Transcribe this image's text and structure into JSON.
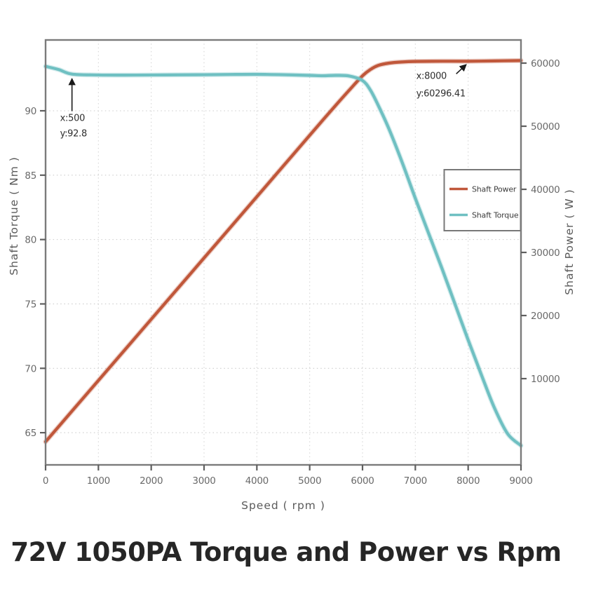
{
  "title": "72V 1050PA Torque and Power vs Rpm",
  "colors": {
    "power_line": "#c0573a",
    "torque_line": "#6fc0c2",
    "axis_border": "#7b7b7b",
    "tick_text": "#696969",
    "axis_label_text": "#5a5a5a",
    "grid": "#cccccc",
    "annotation_text": "#2e2e2e",
    "legend_text": "#3c3c3c",
    "title_text": "#262626"
  },
  "chart_data": {
    "type": "line",
    "title": "72V 1050PA Torque and Power vs Rpm",
    "xlabel": "Speed ( rpm )",
    "ylabel_left": "Shaft Torque ( Nm )",
    "ylabel_right": "Shaft Power ( W )",
    "xlim": [
      0,
      9000
    ],
    "x_ticks": [
      0,
      1000,
      2000,
      3000,
      4000,
      5000,
      6000,
      7000,
      8000,
      9000
    ],
    "ylim_left": [
      62.5,
      95.5
    ],
    "y_ticks_left": [
      65,
      70,
      75,
      80,
      85,
      90
    ],
    "ylim_right": [
      -3667,
      63667
    ],
    "y_ticks_right": [
      10000,
      20000,
      30000,
      40000,
      50000,
      60000
    ],
    "grid": "dotted gridlines at x ticks and left-axis ticks",
    "legend": {
      "position": "middle-right",
      "entries": [
        {
          "label": "Shaft Power",
          "color": "#c0573a"
        },
        {
          "label": "Shaft Torque",
          "color": "#6fc0c2"
        }
      ]
    },
    "series": [
      {
        "name": "Shaft Power",
        "axis": "right",
        "color": "#c0573a",
        "x": [
          0,
          500,
          1000,
          1500,
          2000,
          2500,
          3000,
          3500,
          4000,
          4500,
          5000,
          5250,
          5500,
          5750,
          6000,
          6150,
          6300,
          6500,
          6750,
          7000,
          7500,
          8000,
          8500,
          9000
        ],
        "values": [
          0,
          4860,
          9710,
          14560,
          19410,
          24260,
          29120,
          33970,
          38830,
          43690,
          48560,
          50980,
          53380,
          55720,
          57990,
          58990,
          59640,
          60000,
          60180,
          60260,
          60300,
          60296.41,
          60350,
          60400
        ]
      },
      {
        "name": "Shaft Torque",
        "axis": "left",
        "color": "#6fc0c2",
        "x": [
          0,
          250,
          500,
          1000,
          1500,
          2000,
          2500,
          3000,
          3500,
          4000,
          4500,
          5000,
          5250,
          5500,
          5750,
          6000,
          6150,
          6300,
          6500,
          6750,
          7000,
          7250,
          7500,
          7750,
          8000,
          8250,
          8500,
          8750,
          9000
        ],
        "values": [
          93.45,
          93.2,
          92.85,
          92.78,
          92.77,
          92.78,
          92.79,
          92.8,
          92.82,
          92.83,
          92.8,
          92.75,
          92.72,
          92.75,
          92.7,
          92.35,
          91.6,
          90.4,
          88.6,
          86.0,
          83.2,
          80.5,
          77.8,
          75.0,
          72.2,
          69.5,
          66.9,
          64.9,
          64.0
        ]
      }
    ],
    "annotations": [
      {
        "lines": [
          "x:500",
          "y:92.8"
        ],
        "target_series": "Shaft Torque",
        "target_x": 500,
        "target_value": 92.8
      },
      {
        "lines": [
          "x:8000",
          "y:60296.41"
        ],
        "target_series": "Shaft Power",
        "target_x": 8000,
        "target_value": 60296.41
      }
    ]
  }
}
